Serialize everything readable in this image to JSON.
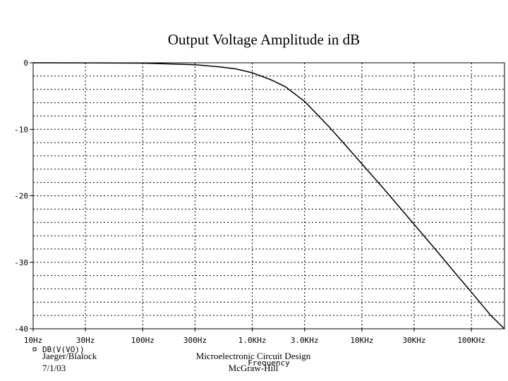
{
  "chart_data": {
    "type": "line",
    "title": "Output Voltage Amplitude in dB",
    "xlabel": "Frequency",
    "ylabel": "",
    "xscale": "log",
    "xlim": [
      10,
      200000
    ],
    "ylim": [
      -40,
      0
    ],
    "x_ticks": [
      {
        "value": 10,
        "label": "10Hz"
      },
      {
        "value": 30,
        "label": "30Hz"
      },
      {
        "value": 100,
        "label": "100Hz"
      },
      {
        "value": 300,
        "label": "300Hz"
      },
      {
        "value": 1000,
        "label": "1.0KHz"
      },
      {
        "value": 3000,
        "label": "3.0KHz"
      },
      {
        "value": 10000,
        "label": "10KHz"
      },
      {
        "value": 30000,
        "label": "30KHz"
      },
      {
        "value": 100000,
        "label": "100KHz"
      }
    ],
    "y_ticks": [
      {
        "value": 0,
        "label": "0"
      },
      {
        "value": -10,
        "label": "-10"
      },
      {
        "value": -20,
        "label": "-20"
      },
      {
        "value": -30,
        "label": "-30"
      },
      {
        "value": -40,
        "label": "-40"
      }
    ],
    "grid": true,
    "legend_position": "bottom-left",
    "series": [
      {
        "name": "DB(V(VO))",
        "x": [
          10,
          30,
          100,
          200,
          300,
          500,
          700,
          1000,
          1500,
          2000,
          3000,
          5000,
          7000,
          10000,
          15000,
          20000,
          30000,
          50000,
          70000,
          100000,
          150000,
          200000
        ],
        "y": [
          0,
          -0.01,
          -0.05,
          -0.2,
          -0.3,
          -0.6,
          -0.9,
          -1.5,
          -2.6,
          -3.6,
          -5.8,
          -9.6,
          -12.3,
          -15.2,
          -18.5,
          -20.9,
          -24.3,
          -28.6,
          -31.5,
          -34.5,
          -38.0,
          -40.4
        ]
      }
    ]
  },
  "footer": {
    "author": "Jaeger/Blalock",
    "date": "7/1/03",
    "book": "Microelectronic Circuit Design",
    "publisher": "McGraw-Hill"
  }
}
